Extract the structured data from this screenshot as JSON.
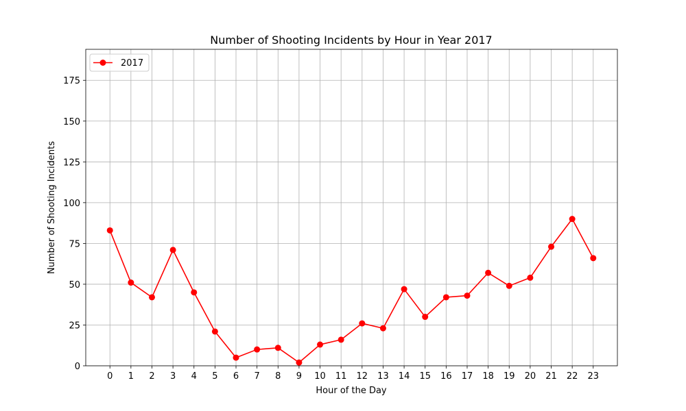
{
  "chart_data": {
    "type": "line",
    "title": "Number of Shooting Incidents by Hour in Year 2017",
    "xlabel": "Hour of the Day",
    "ylabel": "Number of Shooting Incidents",
    "x": [
      0,
      1,
      2,
      3,
      4,
      5,
      6,
      7,
      8,
      9,
      10,
      11,
      12,
      13,
      14,
      15,
      16,
      17,
      18,
      19,
      20,
      21,
      22,
      23
    ],
    "series": [
      {
        "name": "2017",
        "color": "#ff0000",
        "marker": "circle",
        "values": [
          83,
          51,
          42,
          71,
          45,
          21,
          5,
          10,
          11,
          2,
          13,
          16,
          26,
          23,
          47,
          30,
          42,
          43,
          57,
          49,
          54,
          73,
          90,
          66
        ]
      }
    ],
    "xlim": [
      -1.15,
      24.15
    ],
    "ylim": [
      0,
      194
    ],
    "yticks": [
      0,
      25,
      50,
      75,
      100,
      125,
      150,
      175
    ],
    "xticks": [
      "0",
      "1",
      "2",
      "3",
      "4",
      "5",
      "6",
      "7",
      "8",
      "9",
      "10",
      "11",
      "12",
      "13",
      "14",
      "15",
      "16",
      "17",
      "18",
      "19",
      "20",
      "21",
      "22",
      "23"
    ],
    "grid": true,
    "legend_position": "upper left"
  }
}
